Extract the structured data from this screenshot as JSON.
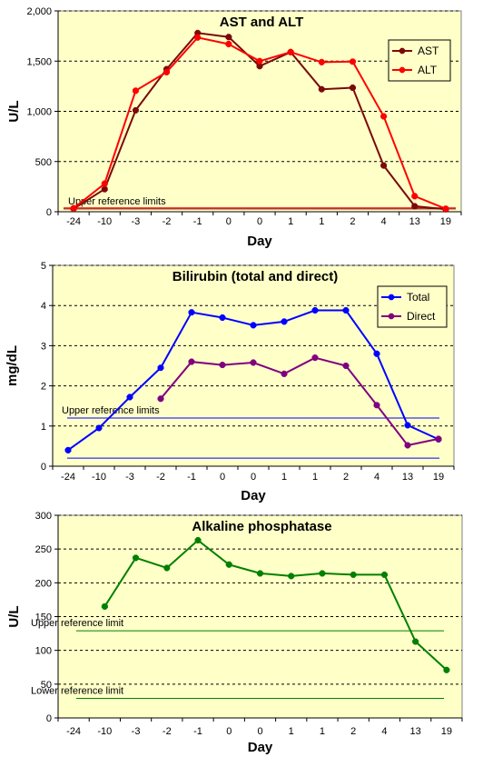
{
  "chart_data": [
    {
      "type": "line",
      "title": "AST and ALT",
      "xlabel": "Day",
      "ylabel": "U/L",
      "categories": [
        "-24",
        "-10",
        "-3",
        "-2",
        "-1",
        "0",
        "0",
        "1",
        "1",
        "2",
        "4",
        "13",
        "19"
      ],
      "ylim": [
        0,
        2000
      ],
      "yticks": [
        "0",
        "500",
        "1,000",
        "1,500",
        "2,000"
      ],
      "ytick_values": [
        0,
        500,
        1000,
        1500,
        2000
      ],
      "grid": true,
      "legend": "top-right",
      "series": [
        {
          "name": "AST",
          "color": "#7a0a0a",
          "values": [
            30,
            225,
            1010,
            1420,
            1780,
            1740,
            1450,
            1590,
            1220,
            1235,
            460,
            55,
            25
          ]
        },
        {
          "name": "ALT",
          "color": "#ff0000",
          "values": [
            35,
            280,
            1205,
            1390,
            1735,
            1670,
            1500,
            1590,
            1490,
            1495,
            950,
            155,
            30
          ]
        }
      ],
      "reference_lines": [
        {
          "label": "Upper reference limits",
          "value": 28,
          "color": "#7a0a0a"
        },
        {
          "label": "",
          "value": 38,
          "color": "#ff0000"
        }
      ]
    },
    {
      "type": "line",
      "title": "Bilirubin (total and direct)",
      "xlabel": "Day",
      "ylabel": "mg/dL",
      "categories": [
        "-24",
        "-10",
        "-3",
        "-2",
        "-1",
        "0",
        "0",
        "1",
        "1",
        "2",
        "4",
        "13",
        "19"
      ],
      "ylim": [
        0,
        5
      ],
      "yticks": [
        "0",
        "1",
        "2",
        "3",
        "4",
        "5"
      ],
      "ytick_values": [
        0,
        1,
        2,
        3,
        4,
        5
      ],
      "grid": true,
      "legend": "top-right",
      "series": [
        {
          "name": "Total",
          "color": "#0000ff",
          "values": [
            0.4,
            0.95,
            1.72,
            2.45,
            3.83,
            3.7,
            3.51,
            3.6,
            3.88,
            3.88,
            2.8,
            1.02,
            0.67
          ]
        },
        {
          "name": "Direct",
          "color": "#800080",
          "values": [
            null,
            null,
            null,
            1.68,
            2.6,
            2.52,
            2.58,
            2.3,
            2.7,
            2.5,
            1.52,
            0.52,
            0.68
          ]
        }
      ],
      "reference_lines": [
        {
          "label": "Upper reference limits",
          "value": 1.2,
          "color": "#0000ff"
        },
        {
          "label": "",
          "value": 0.2,
          "color": "#0000ff"
        }
      ]
    },
    {
      "type": "line",
      "title": "Alkaline phosphatase",
      "xlabel": "Day",
      "ylabel": "U/L",
      "categories": [
        "-24",
        "-10",
        "-3",
        "-2",
        "-1",
        "0",
        "0",
        "1",
        "1",
        "2",
        "4",
        "13",
        "19"
      ],
      "ylim": [
        0,
        300
      ],
      "yticks": [
        "0",
        "50",
        "100",
        "150",
        "200",
        "250",
        "300"
      ],
      "ytick_values": [
        0,
        50,
        100,
        150,
        200,
        250,
        300
      ],
      "grid": true,
      "legend": "none",
      "series": [
        {
          "name": "",
          "color": "#008000",
          "values": [
            null,
            165,
            237,
            222,
            263,
            227,
            214,
            210,
            214,
            212,
            212,
            113,
            71
          ]
        }
      ],
      "reference_lines": [
        {
          "label": "Upper reference limit",
          "value": 129,
          "color": "#008000"
        },
        {
          "label": "Lower reference limit",
          "value": 29,
          "color": "#008000"
        }
      ]
    }
  ],
  "colors": {
    "plot_background": "#ffffc8",
    "grid": "#000000"
  }
}
